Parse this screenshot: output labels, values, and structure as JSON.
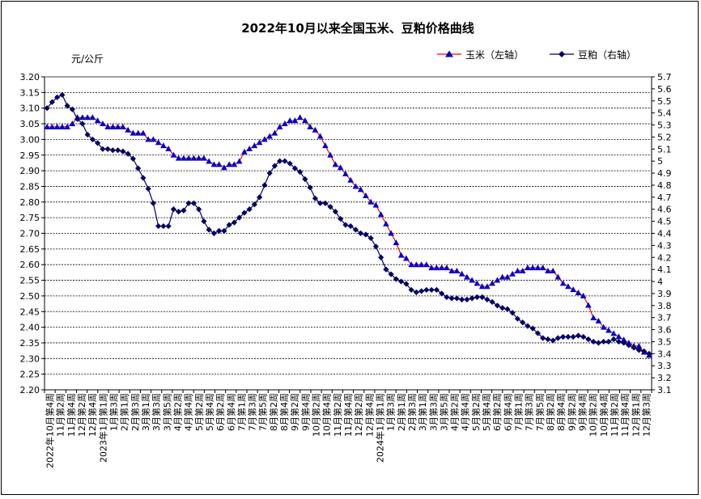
{
  "chart_data": {
    "type": "line",
    "title": "2022年10月以来全国玉米、豆粕价格曲线",
    "unit_label": "元/公斤",
    "legend_position": "top-right",
    "grid": true,
    "left_axis": {
      "min": 2.2,
      "max": 3.2,
      "step": 0.05,
      "ticks": [
        "3.20",
        "3.15",
        "3.10",
        "3.05",
        "3.00",
        "2.95",
        "2.90",
        "2.85",
        "2.80",
        "2.75",
        "2.70",
        "2.65",
        "2.60",
        "2.55",
        "2.50",
        "2.45",
        "2.40",
        "2.35",
        "2.30",
        "2.25",
        "2.20"
      ]
    },
    "right_axis": {
      "min": 3.1,
      "max": 5.7,
      "step": 0.1,
      "ticks": [
        "5.7",
        "5.6",
        "5.5",
        "5.4",
        "5.3",
        "5.2",
        "5.1",
        "5",
        "4.9",
        "4.8",
        "4.7",
        "4.6",
        "4.5",
        "4.4",
        "4.3",
        "4.2",
        "4.1",
        "4",
        "3.9",
        "3.8",
        "3.7",
        "3.6",
        "3.5",
        "3.4",
        "3.3",
        "3.2",
        "3.1"
      ]
    },
    "x_labels": [
      "2022年10月第4周",
      "11月第2周",
      "11月第4周",
      "12月第2周",
      "12月第4周",
      "2023年1月第1周",
      "1月第3周",
      "2月第1周",
      "2月第3周",
      "3月第1周",
      "3月第3周",
      "3月第5周",
      "4月第2周",
      "4月第4周",
      "5月第2周",
      "5月第4周",
      "6月第2周",
      "6月第4周",
      "7月第1周",
      "7月第3周",
      "7月第5周",
      "8月第2周",
      "8月第4周",
      "9月第2周",
      "9月第4周",
      "10月第2周",
      "10月第4周",
      "11月第2周",
      "11月第4周",
      "12月第2周",
      "12月第4周",
      "2024年1月第1周",
      "1月第3周",
      "2月第1周",
      "2月第3周",
      "3月第1周",
      "3月第3周",
      "3月第5周",
      "4月第2周",
      "4月第4周",
      "5月第2周",
      "5月第4周",
      "6月第2周",
      "6月第4周",
      "7月第1周",
      "7月第3周",
      "7月第5周",
      "8月第2周",
      "8月第4周",
      "9月第2周",
      "9月第4周",
      "10月第2周",
      "10月第4周",
      "11月第2周",
      "11月第4周",
      "12月第1周",
      "12月第3周"
    ],
    "series": [
      {
        "name": "玉米（左轴）",
        "axis": "left",
        "color": "#0000cc",
        "line_color": "#ff0000",
        "marker": "triangle",
        "values": [
          3.04,
          3.04,
          3.04,
          3.04,
          3.04,
          3.05,
          3.07,
          3.07,
          3.07,
          3.07,
          3.06,
          3.05,
          3.04,
          3.04,
          3.04,
          3.04,
          3.03,
          3.02,
          3.02,
          3.02,
          3.0,
          3.0,
          2.99,
          2.98,
          2.97,
          2.95,
          2.94,
          2.94,
          2.94,
          2.94,
          2.94,
          2.94,
          2.93,
          2.92,
          2.92,
          2.91,
          2.92,
          2.92,
          2.93,
          2.96,
          2.97,
          2.98,
          2.99,
          3.0,
          3.01,
          3.02,
          3.04,
          3.05,
          3.06,
          3.06,
          3.07,
          3.06,
          3.04,
          3.03,
          3.01,
          2.98,
          2.95,
          2.92,
          2.91,
          2.89,
          2.87,
          2.85,
          2.84,
          2.82,
          2.8,
          2.79,
          2.76,
          2.73,
          2.7,
          2.67,
          2.63,
          2.62,
          2.6,
          2.6,
          2.6,
          2.6,
          2.59,
          2.59,
          2.59,
          2.59,
          2.58,
          2.58,
          2.57,
          2.56,
          2.55,
          2.54,
          2.53,
          2.53,
          2.54,
          2.55,
          2.56,
          2.56,
          2.57,
          2.58,
          2.58,
          2.59,
          2.59,
          2.59,
          2.59,
          2.58,
          2.58,
          2.56,
          2.54,
          2.53,
          2.52,
          2.51,
          2.5,
          2.47,
          2.43,
          2.42,
          2.4,
          2.39,
          2.38,
          2.37,
          2.36,
          2.35,
          2.34,
          2.34,
          2.32,
          2.31
        ]
      },
      {
        "name": "豆粕（右轴）",
        "axis": "right",
        "color": "#000066",
        "line_color": "#000066",
        "marker": "diamond",
        "values": [
          5.44,
          5.49,
          5.53,
          5.55,
          5.46,
          5.43,
          5.35,
          5.31,
          5.22,
          5.18,
          5.15,
          5.1,
          5.1,
          5.09,
          5.09,
          5.08,
          5.06,
          5.02,
          4.94,
          4.86,
          4.77,
          4.65,
          4.46,
          4.46,
          4.46,
          4.6,
          4.58,
          4.59,
          4.65,
          4.65,
          4.6,
          4.5,
          4.43,
          4.4,
          4.42,
          4.42,
          4.47,
          4.49,
          4.53,
          4.57,
          4.6,
          4.64,
          4.7,
          4.8,
          4.9,
          4.96,
          5.0,
          5.0,
          4.98,
          4.94,
          4.91,
          4.85,
          4.78,
          4.69,
          4.65,
          4.65,
          4.62,
          4.58,
          4.52,
          4.47,
          4.46,
          4.43,
          4.4,
          4.39,
          4.36,
          4.29,
          4.2,
          4.1,
          4.06,
          4.02,
          4.0,
          3.98,
          3.93,
          3.91,
          3.92,
          3.93,
          3.93,
          3.93,
          3.9,
          3.87,
          3.86,
          3.86,
          3.85,
          3.85,
          3.86,
          3.87,
          3.87,
          3.85,
          3.83,
          3.8,
          3.78,
          3.77,
          3.74,
          3.69,
          3.66,
          3.63,
          3.61,
          3.57,
          3.53,
          3.52,
          3.51,
          3.53,
          3.54,
          3.54,
          3.54,
          3.55,
          3.54,
          3.52,
          3.5,
          3.49,
          3.5,
          3.5,
          3.52,
          3.5,
          3.49,
          3.47,
          3.45,
          3.43,
          3.42,
          3.4
        ]
      }
    ]
  }
}
